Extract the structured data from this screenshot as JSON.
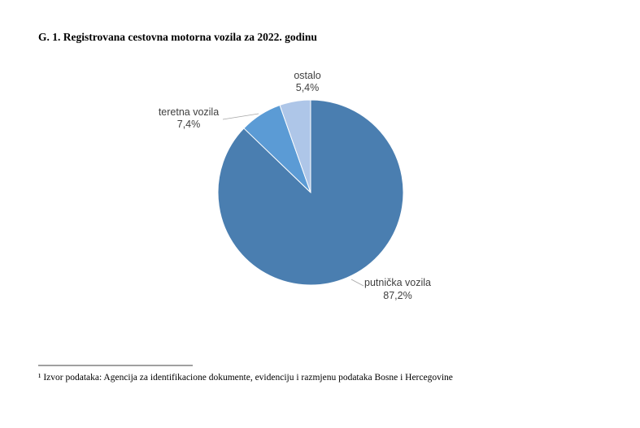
{
  "chart_data": {
    "type": "pie",
    "title": "G. 1. Registrovana cestovna motorna vozila za 2022. godinu",
    "categories": [
      "putnička vozila",
      "teretna vozila",
      "ostalo"
    ],
    "values": [
      87.2,
      7.4,
      5.4
    ],
    "value_labels": [
      "87,2%",
      "7,4%",
      "5,4%"
    ],
    "colors": [
      "#4a7eb0",
      "#5b9bd5",
      "#aec6e8"
    ]
  },
  "footnote": "¹ Izvor podataka: Agencija za identifikacione dokumente, evidenciju i razmjenu podataka Bosne i Hercegovine"
}
